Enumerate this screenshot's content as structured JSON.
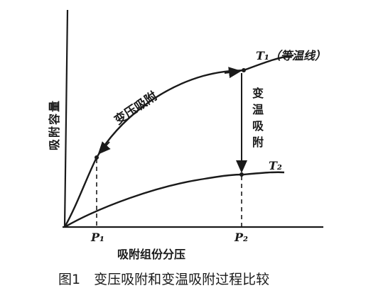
{
  "figure": {
    "caption": "图1　变压吸附和变温吸附过程比较",
    "y_axis_label": "吸附容量",
    "x_axis_label": "吸附组份分压",
    "curves": {
      "t1_label": "T₁（等温线）",
      "t2_label": "T₂",
      "psa_label": "变压吸附",
      "tsa_label": [
        "变",
        "温",
        "吸",
        "附"
      ]
    },
    "pressure_marks": {
      "p1": "P₁",
      "p2": "P₂"
    }
  }
}
